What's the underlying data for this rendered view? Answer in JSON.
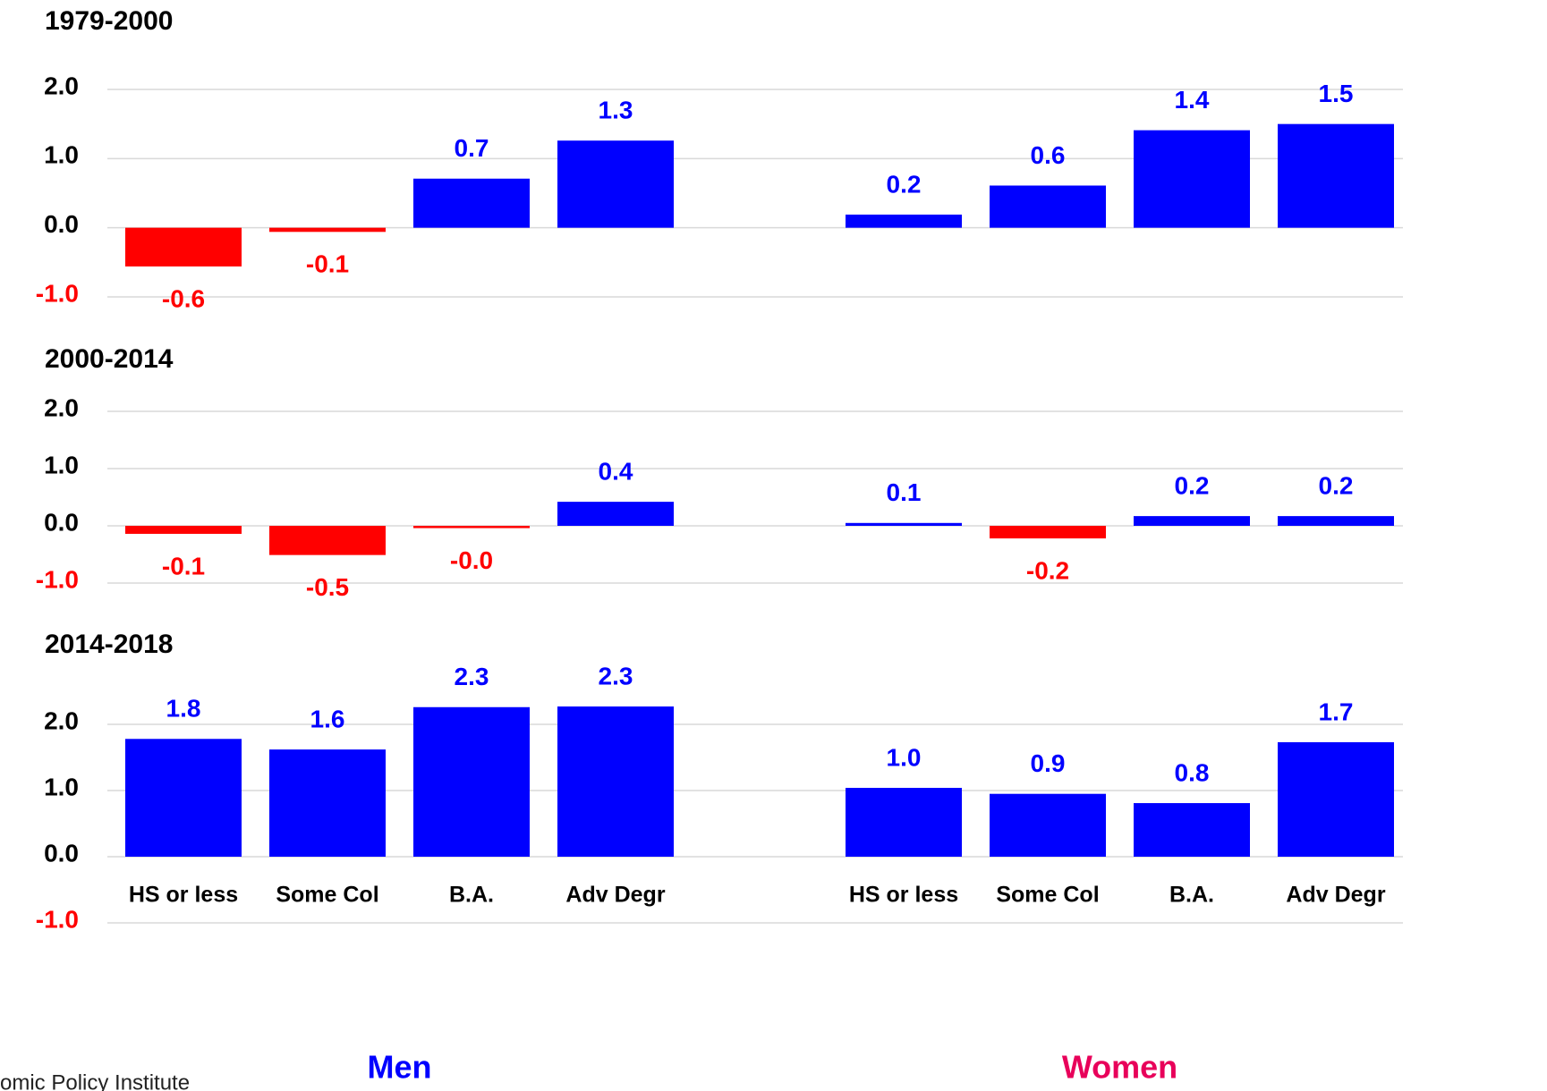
{
  "chart_data": [
    {
      "type": "bar",
      "title": "1979-2000",
      "values": [
        -0.56,
        -0.06,
        0.71,
        1.26,
        0.19,
        0.61,
        1.41,
        1.5
      ],
      "value_labels": [
        "-0.6",
        "-0.1",
        "0.7",
        "1.3",
        "0.2",
        "0.6",
        "1.4",
        "1.5"
      ],
      "color": "#0000ff",
      "negative_color": "#ff0000",
      "ylim": [
        -1,
        2
      ],
      "yticks": [
        {
          "value": -1,
          "label": "-1.0"
        },
        {
          "value": 0,
          "label": "0.0"
        },
        {
          "value": 1,
          "label": "1.0"
        },
        {
          "value": 2,
          "label": "2.0"
        }
      ],
      "grid": true
    },
    {
      "type": "bar",
      "title": "2000-2014",
      "values": [
        -0.14,
        -0.51,
        -0.04,
        0.42,
        0.05,
        -0.22,
        0.17,
        0.17
      ],
      "value_labels": [
        "-0.1",
        "-0.5",
        "-0.0",
        "0.4",
        "0.1",
        "-0.2",
        "0.2",
        "0.2"
      ],
      "color": "#0000ff",
      "negative_color": "#ff0000",
      "ylim": [
        -1,
        2
      ],
      "yticks": [
        {
          "value": -1,
          "label": "-1.0"
        },
        {
          "value": 0,
          "label": "0.0"
        },
        {
          "value": 1,
          "label": "1.0"
        },
        {
          "value": 2,
          "label": "2.0"
        }
      ],
      "grid": true
    },
    {
      "type": "bar",
      "title": "2014-2018",
      "categories": [
        "HS or less",
        "Some Col",
        "B.A.",
        "Adv Degr",
        "HS or less",
        "Some Col",
        "B.A.",
        "Adv Degr"
      ],
      "values": [
        1.78,
        1.62,
        2.26,
        2.27,
        1.04,
        0.95,
        0.81,
        1.73
      ],
      "value_labels": [
        "1.8",
        "1.6",
        "2.3",
        "2.3",
        "1.0",
        "0.9",
        "0.8",
        "1.7"
      ],
      "color": "#0000ff",
      "negative_color": "#ff0000",
      "ylim": [
        -1,
        2
      ],
      "yticks": [
        {
          "value": -1,
          "label": "-1.0"
        },
        {
          "value": 0,
          "label": "0.0"
        },
        {
          "value": 1,
          "label": "1.0"
        },
        {
          "value": 2,
          "label": "2.0"
        }
      ],
      "grid": true
    }
  ],
  "groups": [
    {
      "name": "Men",
      "color": "#0000ff"
    },
    {
      "name": "Women",
      "color": "#e8005a"
    }
  ],
  "source": "omic Policy Institute"
}
